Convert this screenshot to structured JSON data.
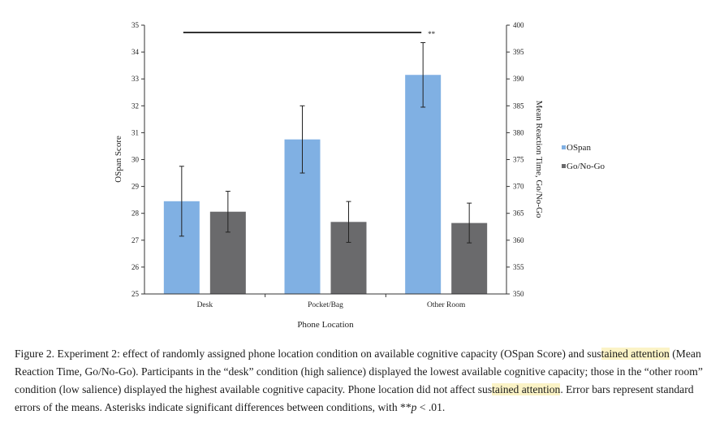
{
  "chart_data": {
    "type": "bar",
    "categories": [
      "Desk",
      "Pocket/Bag",
      "Other Room"
    ],
    "xlabel": "Phone Location",
    "ylabel": "OSpan Score",
    "y2label": "Mean Reaction Time, Go/No-Go",
    "ylim": [
      25,
      35
    ],
    "y2lim": [
      350,
      400
    ],
    "yticks": [
      25,
      26,
      27,
      28,
      29,
      30,
      31,
      32,
      33,
      34,
      35
    ],
    "y2ticks": [
      350,
      355,
      360,
      365,
      370,
      375,
      380,
      385,
      390,
      395,
      400
    ],
    "series": [
      {
        "name": "OSpan",
        "axis": "left",
        "color": "#80b0e3",
        "values": [
          28.45,
          30.75,
          33.15
        ],
        "errors": [
          1.3,
          1.25,
          1.2
        ]
      },
      {
        "name": "Go/No-Go",
        "axis": "right",
        "color": "#6a6a6c",
        "values": [
          365.3,
          363.4,
          363.2
        ],
        "errors": [
          3.8,
          3.8,
          3.7
        ]
      }
    ],
    "significance": {
      "label": "**",
      "from": "Desk",
      "to": "Other Room",
      "series": "OSpan"
    },
    "grid": false,
    "legend": "right"
  },
  "caption": {
    "p1": "Figure 2. Experiment 2: effect of randomly assigned phone location condition on available cognitive capacity (OSpan Score) and sus",
    "h1": "tained attention",
    "p2": " (Mean Reaction Time, Go/No-Go). Participants in the “desk” condition (high salience) displayed the lowest available cognitive capacity; those in the “other room” condition (low salience) displayed the highest available cognitive capacity. Phone location did not affect sus",
    "h2": "tained attention",
    "p3": ". Error bars represent standard errors of the means. Asterisks indicate significant differences between conditions, with **",
    "pvar": "p",
    "p4": " < .01."
  }
}
